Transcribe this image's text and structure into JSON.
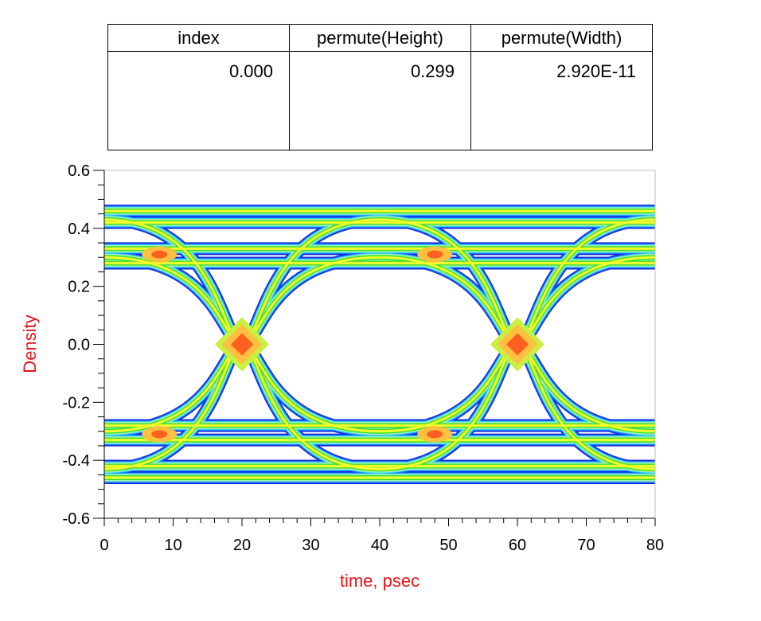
{
  "table": {
    "headers": [
      "index",
      "permute(Height)",
      "permute(Width)"
    ],
    "values": [
      "0.000",
      "0.299",
      "2.920E-11"
    ]
  },
  "chart_data": {
    "type": "heatmap",
    "subtype": "eye-diagram density",
    "xlabel": "time, psec",
    "ylabel": "Density",
    "xlim": [
      0,
      80
    ],
    "ylim": [
      -0.6,
      0.6
    ],
    "x_ticks": [
      "0",
      "10",
      "20",
      "30",
      "40",
      "50",
      "60",
      "70",
      "80"
    ],
    "y_ticks": [
      "0.6",
      "0.4",
      "0.2",
      "0.0",
      "-0.2",
      "-0.4",
      "-0.6"
    ],
    "levels": {
      "high": 0.48,
      "low": -0.48,
      "inner_high": 0.25,
      "inner_low": -0.25
    },
    "crossings_x": [
      20,
      60
    ],
    "eye_height": 0.299,
    "eye_width": "2.920E-11",
    "grid": false,
    "colors": {
      "axis_label": "#e8141a",
      "density_scale": [
        "#1428dc",
        "#1e78ff",
        "#30d0ff",
        "#a8f0a8",
        "#30e030",
        "#c8f040",
        "#ffff20",
        "#ffc040",
        "#ff6020"
      ]
    }
  }
}
